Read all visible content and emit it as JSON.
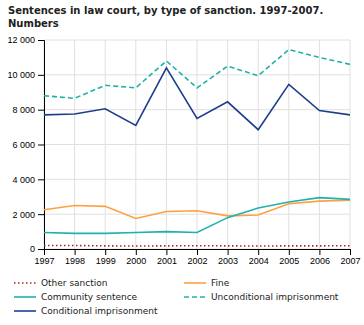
{
  "chart_data": {
    "type": "line",
    "title": "Sentences in law court, by type of sanction. 1997-2007.\nNumbers",
    "x": [
      1997,
      1998,
      1999,
      2000,
      2001,
      2002,
      2003,
      2004,
      2005,
      2006,
      2007
    ],
    "series": [
      {
        "name": "Other sanction",
        "color": "#B22222",
        "line_style": "dotted",
        "values": [
          200,
          200,
          180,
          170,
          180,
          190,
          180,
          170,
          180,
          180,
          190
        ]
      },
      {
        "name": "Fine",
        "color": "#FFA040",
        "line_style": "solid",
        "values": [
          2250,
          2500,
          2450,
          1750,
          2150,
          2200,
          1900,
          1950,
          2600,
          2750,
          2800
        ]
      },
      {
        "name": "Community sentence",
        "color": "#20B2AA",
        "line_style": "solid",
        "values": [
          950,
          900,
          900,
          950,
          1000,
          950,
          1800,
          2350,
          2700,
          2950,
          2850
        ]
      },
      {
        "name": "Unconditional imprisonment",
        "color": "#20B2AA",
        "line_style": "dashed",
        "values": [
          8800,
          8650,
          9400,
          9250,
          10800,
          9250,
          10500,
          9950,
          11450,
          11000,
          10600
        ]
      },
      {
        "name": "Conditional imprisonment",
        "color": "#1C3F8C",
        "line_style": "solid",
        "values": [
          7700,
          7750,
          8050,
          7100,
          10400,
          7500,
          8450,
          6850,
          9450,
          7950,
          7700
        ]
      }
    ],
    "xlim": [
      1997,
      2007
    ],
    "xticks": [
      1997,
      1998,
      1999,
      2000,
      2001,
      2002,
      2003,
      2004,
      2005,
      2006,
      2007
    ],
    "ylim": [
      0,
      12000
    ],
    "yticks": [
      0,
      {
        "value": 2000,
        "label": "2 000"
      },
      {
        "value": 4000,
        "label": "4 000"
      },
      {
        "value": 6000,
        "label": "6 000"
      },
      {
        "value": 8000,
        "label": "8 000"
      },
      {
        "value": 10000,
        "label": "10 000"
      },
      {
        "value": 12000,
        "label": "12 000"
      }
    ],
    "grid": true,
    "legend": "bottom"
  }
}
